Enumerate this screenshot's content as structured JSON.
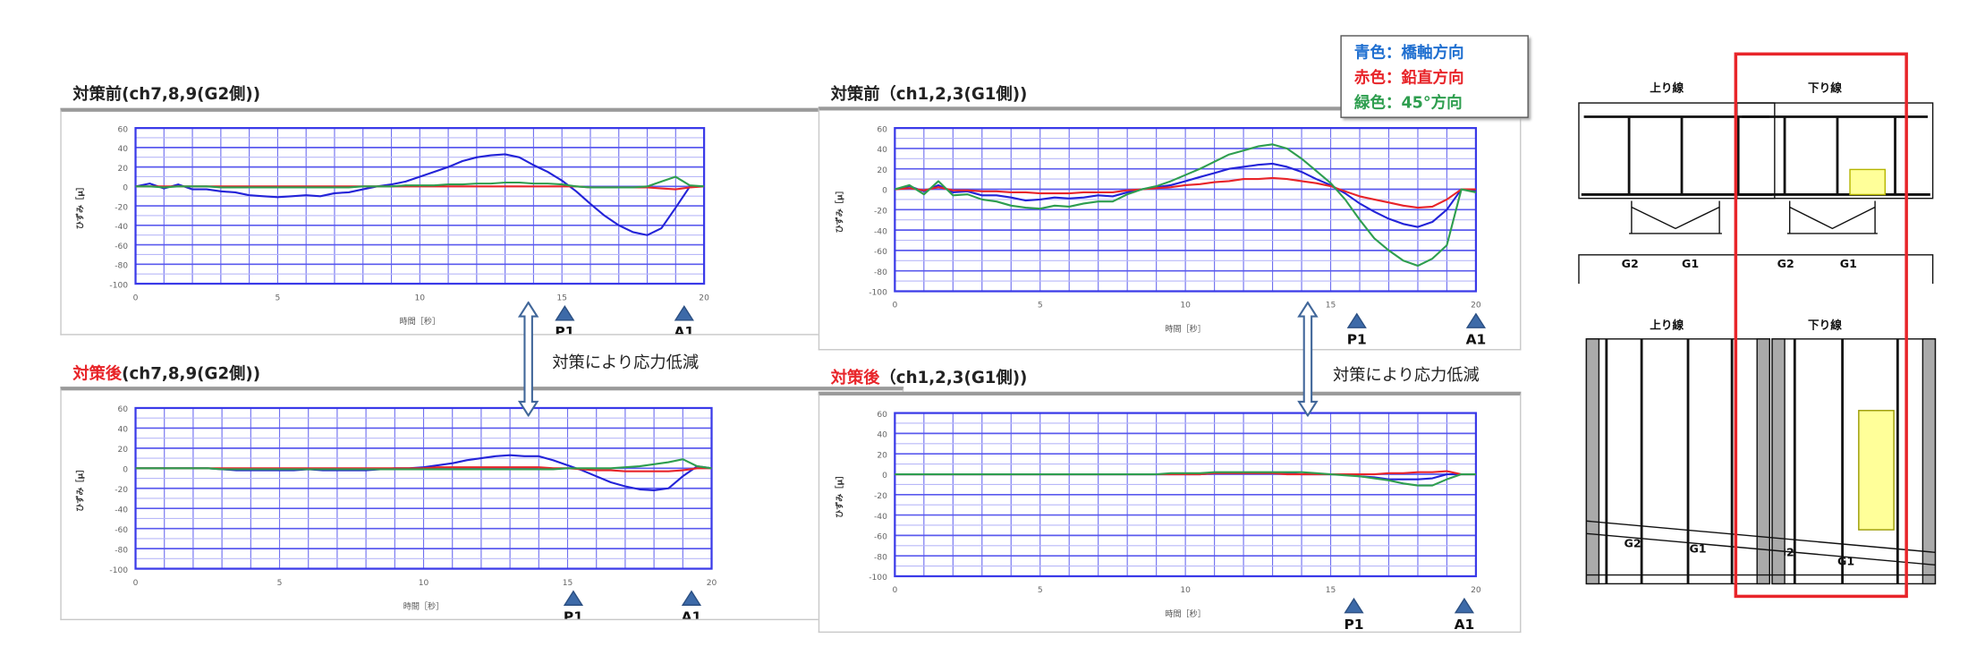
{
  "legend": {
    "items": [
      {
        "label": "青色：橋軸方向",
        "color": "#1f6fd0"
      },
      {
        "label": "赤色：鉛直方向",
        "color": "#e8252a"
      },
      {
        "label": "緑色：45°方向",
        "color": "#2e9e4f"
      }
    ]
  },
  "annotations": {
    "left_note": "対策により応力低減",
    "right_note": "対策により応力低減"
  },
  "diagram": {
    "labels": {
      "up_line": "上り線",
      "down_line": "下り線",
      "g2": "G2",
      "g1": "G1"
    },
    "highlight_color": "#e8252a",
    "vehicle_color": "#ffff99"
  },
  "chart_data": [
    {
      "type": "line",
      "title_prefix": "対策前",
      "title": "(ch7,8,9(G2側))",
      "xlabel": "時間［秒］",
      "ylabel": "ひずみ［μ］",
      "xlim": [
        0,
        20
      ],
      "ylim": [
        -100,
        60
      ],
      "xticks": [
        0,
        5,
        10,
        15,
        20
      ],
      "yticks": [
        60,
        40,
        20,
        0,
        -20,
        -40,
        -60,
        -80,
        -100
      ],
      "grid": true,
      "x_step": 0.5,
      "markers": [
        {
          "label": "P1",
          "x": 15.1
        },
        {
          "label": "A1",
          "x": 19.3
        }
      ],
      "series": [
        {
          "color": "#2323d8",
          "values": [
            0,
            3,
            -2,
            2,
            -3,
            -3,
            -5,
            -6,
            -9,
            -10,
            -11,
            -10,
            -9,
            -10,
            -7,
            -6,
            -3,
            0,
            2,
            5,
            10,
            15,
            20,
            26,
            30,
            32,
            33,
            30,
            22,
            15,
            6,
            -5,
            -18,
            -30,
            -40,
            -47,
            -50,
            -43,
            -22,
            0,
            0
          ]
        },
        {
          "color": "#e8252a",
          "values": [
            0,
            0,
            0,
            0,
            0,
            0,
            0,
            0,
            0,
            0,
            0,
            0,
            0,
            0,
            0,
            0,
            0,
            0,
            0,
            0,
            0,
            0,
            0,
            0,
            0,
            0,
            0,
            0,
            0,
            0,
            0,
            0,
            -1,
            -1,
            -1,
            -1,
            -1,
            -2,
            -3,
            -1,
            0
          ]
        },
        {
          "color": "#2e9e4f",
          "values": [
            0,
            0,
            -1,
            0,
            0,
            0,
            -1,
            -1,
            -1,
            -1,
            -1,
            -1,
            -1,
            -1,
            -1,
            -1,
            0,
            0,
            0,
            1,
            1,
            1,
            2,
            2,
            3,
            3,
            4,
            4,
            3,
            3,
            2,
            0,
            -1,
            -1,
            -1,
            -1,
            0,
            5,
            10,
            1,
            0
          ]
        }
      ]
    },
    {
      "type": "line",
      "title_prefix": "対策後",
      "title": "(ch7,8,9(G2側))",
      "xlabel": "時間［秒］",
      "ylabel": "ひずみ［μ］",
      "xlim": [
        0,
        20
      ],
      "ylim": [
        -100,
        60
      ],
      "xticks": [
        0,
        5,
        10,
        15,
        20
      ],
      "yticks": [
        60,
        40,
        20,
        0,
        -20,
        -40,
        -60,
        -80,
        -100
      ],
      "grid": true,
      "x_step": 0.5,
      "markers": [
        {
          "label": "P1",
          "x": 15.2
        },
        {
          "label": "A1",
          "x": 19.3
        }
      ],
      "series": [
        {
          "color": "#2323d8",
          "values": [
            0,
            0,
            0,
            0,
            0,
            0,
            -1,
            -2,
            -2,
            -2,
            -2,
            -2,
            -1,
            -2,
            -2,
            -2,
            -2,
            -1,
            0,
            0,
            1,
            3,
            5,
            8,
            10,
            12,
            13,
            12,
            12,
            8,
            3,
            -2,
            -8,
            -14,
            -18,
            -21,
            -22,
            -20,
            -8,
            2,
            0
          ]
        },
        {
          "color": "#e8252a",
          "values": [
            0,
            0,
            0,
            0,
            0,
            0,
            0,
            0,
            0,
            0,
            0,
            0,
            0,
            0,
            0,
            0,
            0,
            0,
            0,
            0,
            0,
            1,
            1,
            1,
            1,
            1,
            1,
            1,
            1,
            0,
            0,
            -1,
            -2,
            -2,
            -3,
            -3,
            -3,
            -3,
            -2,
            0,
            0
          ]
        },
        {
          "color": "#2e9e4f",
          "values": [
            0,
            0,
            0,
            0,
            0,
            0,
            -1,
            -1,
            -1,
            -1,
            -1,
            -1,
            -1,
            -1,
            -1,
            -1,
            -1,
            -1,
            -1,
            -1,
            -1,
            -1,
            -1,
            -1,
            -1,
            -1,
            -1,
            -1,
            -1,
            -1,
            0,
            0,
            0,
            0,
            1,
            2,
            4,
            6,
            9,
            2,
            0
          ]
        }
      ]
    },
    {
      "type": "line",
      "title_prefix": "対策前",
      "title": "（ch1,2,3(G1側))",
      "xlabel": "時間［秒］",
      "ylabel": "ひずみ［μ］",
      "xlim": [
        0,
        20
      ],
      "ylim": [
        -100,
        60
      ],
      "xticks": [
        0,
        5,
        10,
        15,
        20
      ],
      "yticks": [
        60,
        40,
        20,
        0,
        -20,
        -40,
        -60,
        -80,
        -100
      ],
      "grid": true,
      "x_step": 0.5,
      "markers": [
        {
          "label": "P1",
          "x": 15.9
        },
        {
          "label": "A1",
          "x": 20
        }
      ],
      "series": [
        {
          "color": "#2323d8",
          "values": [
            0,
            3,
            -2,
            4,
            -3,
            -2,
            -6,
            -6,
            -8,
            -11,
            -10,
            -8,
            -9,
            -8,
            -6,
            -7,
            -3,
            0,
            2,
            4,
            8,
            12,
            16,
            20,
            22,
            24,
            25,
            22,
            17,
            10,
            4,
            -4,
            -14,
            -22,
            -29,
            -34,
            -37,
            -32,
            -20,
            0,
            -2
          ]
        },
        {
          "color": "#e8252a",
          "values": [
            0,
            1,
            -1,
            2,
            -1,
            -1,
            -2,
            -2,
            -3,
            -3,
            -4,
            -4,
            -4,
            -3,
            -3,
            -3,
            -1,
            0,
            1,
            2,
            4,
            5,
            7,
            8,
            10,
            10,
            11,
            10,
            8,
            6,
            3,
            -2,
            -7,
            -10,
            -13,
            -16,
            -18,
            -17,
            -10,
            0,
            0
          ]
        },
        {
          "color": "#2e9e4f",
          "values": [
            0,
            4,
            -5,
            8,
            -6,
            -5,
            -10,
            -12,
            -16,
            -18,
            -19,
            -16,
            -17,
            -14,
            -12,
            -12,
            -5,
            0,
            3,
            8,
            14,
            20,
            27,
            34,
            38,
            42,
            44,
            40,
            30,
            18,
            6,
            -10,
            -30,
            -48,
            -60,
            -70,
            -75,
            -68,
            -55,
            0,
            -3
          ]
        }
      ]
    },
    {
      "type": "line",
      "title_prefix": "対策後",
      "title": "（ch1,2,3(G1側))",
      "xlabel": "時間［秒］",
      "ylabel": "ひずみ［μ］",
      "xlim": [
        0,
        20
      ],
      "ylim": [
        -100,
        60
      ],
      "xticks": [
        0,
        5,
        10,
        15,
        20
      ],
      "yticks": [
        60,
        40,
        20,
        0,
        -20,
        -40,
        -60,
        -80,
        -100
      ],
      "grid": true,
      "x_step": 0.5,
      "markers": [
        {
          "label": "P1",
          "x": 15.8
        },
        {
          "label": "A1",
          "x": 19.6
        }
      ],
      "series": [
        {
          "color": "#2323d8",
          "values": [
            0,
            0,
            0,
            0,
            0,
            0,
            0,
            0,
            0,
            0,
            0,
            0,
            0,
            0,
            0,
            0,
            0,
            0,
            0,
            0,
            0,
            0,
            1,
            1,
            1,
            1,
            1,
            1,
            0,
            0,
            0,
            0,
            -2,
            -3,
            -5,
            -5,
            -5,
            -4,
            0,
            0,
            0
          ]
        },
        {
          "color": "#e8252a",
          "values": [
            0,
            0,
            0,
            0,
            0,
            0,
            0,
            0,
            0,
            0,
            0,
            0,
            0,
            0,
            0,
            0,
            0,
            0,
            0,
            0,
            0,
            0,
            1,
            1,
            1,
            1,
            1,
            0,
            0,
            0,
            0,
            0,
            0,
            0,
            1,
            1,
            2,
            2,
            3,
            0,
            0
          ]
        },
        {
          "color": "#2e9e4f",
          "values": [
            0,
            0,
            0,
            0,
            0,
            0,
            0,
            0,
            0,
            0,
            0,
            0,
            0,
            0,
            0,
            0,
            0,
            0,
            0,
            1,
            1,
            1,
            2,
            2,
            2,
            2,
            2,
            2,
            2,
            1,
            0,
            -1,
            -2,
            -4,
            -6,
            -9,
            -11,
            -11,
            -5,
            0,
            0
          ]
        }
      ]
    }
  ]
}
